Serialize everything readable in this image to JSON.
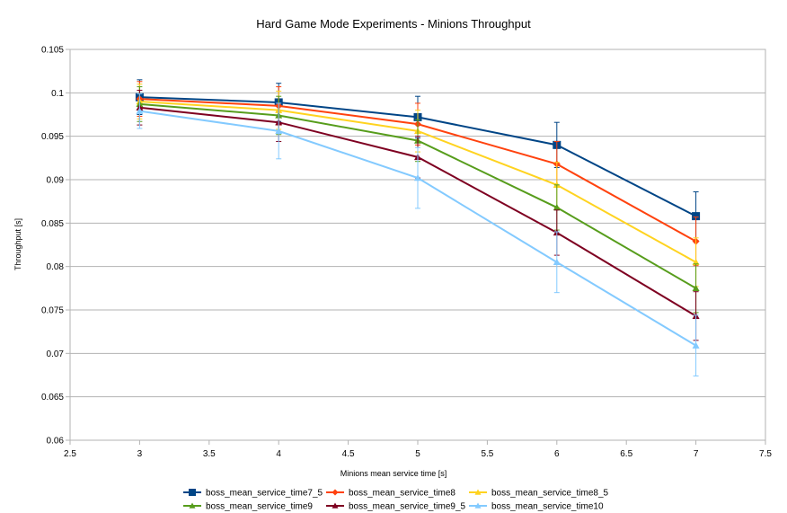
{
  "chart_data": {
    "type": "line",
    "title": "Hard Game Mode Experiments - Minions Throughput",
    "xlabel": "Minions mean service time [s]",
    "ylabel": "Throughput [s]",
    "xlim": [
      2.5,
      7.5
    ],
    "ylim": [
      0.06,
      0.105
    ],
    "x_ticks": [
      "2.5",
      "3",
      "3.5",
      "4",
      "4.5",
      "5",
      "5.5",
      "6",
      "6.5",
      "7",
      "7.5"
    ],
    "y_ticks": [
      "0.06",
      "0.065",
      "0.07",
      "0.075",
      "0.08",
      "0.085",
      "0.09",
      "0.095",
      "0.1",
      "0.105"
    ],
    "grid": true,
    "legend_position": "bottom",
    "x": [
      3,
      4,
      5,
      6,
      7
    ],
    "series": [
      {
        "name": "boss_mean_service_time7_5",
        "color": "#004586",
        "marker": "square",
        "values": [
          0.0995,
          0.0989,
          0.0972,
          0.094,
          0.0858
        ],
        "errors": [
          0.002,
          0.0022,
          0.0024,
          0.0026,
          0.0028
        ]
      },
      {
        "name": "boss_mean_service_time8",
        "color": "#ff420e",
        "marker": "diamond",
        "values": [
          0.0993,
          0.0985,
          0.0964,
          0.0918,
          0.0829
        ],
        "errors": [
          0.002,
          0.0022,
          0.0024,
          0.0026,
          0.0028
        ]
      },
      {
        "name": "boss_mean_service_time8_5",
        "color": "#ffd320",
        "marker": "triangle",
        "values": [
          0.099,
          0.098,
          0.0956,
          0.0894,
          0.0805
        ],
        "errors": [
          0.002,
          0.0022,
          0.0024,
          0.0026,
          0.0028
        ]
      },
      {
        "name": "boss_mean_service_time9",
        "color": "#579d1c",
        "marker": "triangle",
        "values": [
          0.0987,
          0.0974,
          0.0945,
          0.0868,
          0.0775
        ],
        "errors": [
          0.002,
          0.0022,
          0.0024,
          0.0026,
          0.0028
        ]
      },
      {
        "name": "boss_mean_service_time9_5",
        "color": "#7e0021",
        "marker": "triangle",
        "values": [
          0.0983,
          0.0966,
          0.0926,
          0.0839,
          0.0743
        ],
        "errors": [
          0.002,
          0.0022,
          0.0024,
          0.0026,
          0.0028
        ]
      },
      {
        "name": "boss_mean_service_time10",
        "color": "#83caff",
        "marker": "triangle",
        "values": [
          0.0979,
          0.0956,
          0.0902,
          0.0805,
          0.0709
        ],
        "errors": [
          0.002,
          0.0032,
          0.0035,
          0.0035,
          0.0035
        ]
      }
    ]
  }
}
